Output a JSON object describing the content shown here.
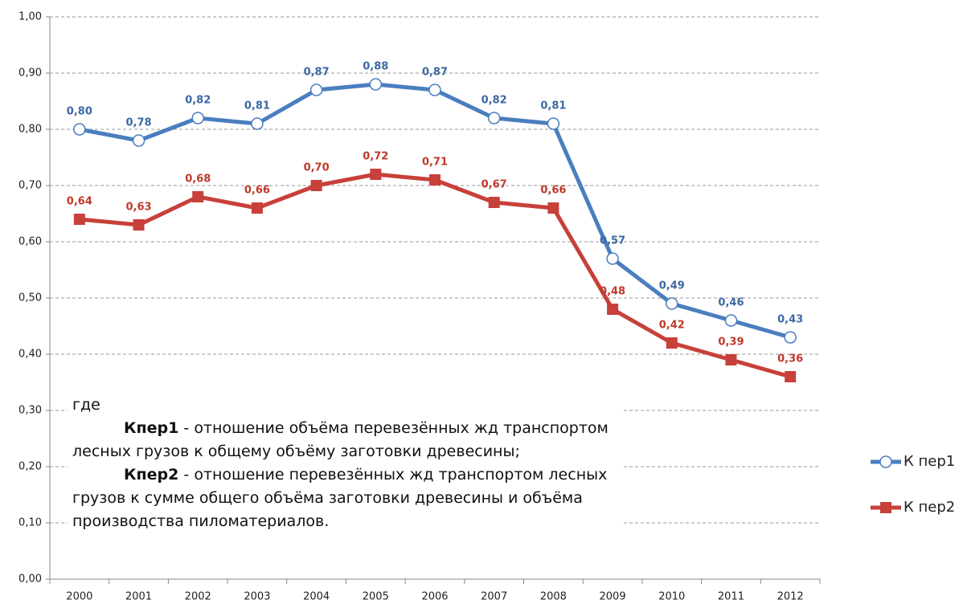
{
  "chart_data": {
    "type": "line",
    "categories": [
      "2000",
      "2001",
      "2002",
      "2003",
      "2004",
      "2005",
      "2006",
      "2007",
      "2008",
      "2009",
      "2010",
      "2011",
      "2012"
    ],
    "series": [
      {
        "name": "К пер1",
        "color": "#4a7ebf",
        "label_color": "#3d68a3",
        "marker": "circle",
        "values": [
          0.8,
          0.78,
          0.82,
          0.81,
          0.87,
          0.88,
          0.87,
          0.82,
          0.81,
          0.57,
          0.49,
          0.46,
          0.43
        ],
        "value_labels": [
          "0,80",
          "0,78",
          "0,82",
          "0,81",
          "0,87",
          "0,88",
          "0,87",
          "0,82",
          "0,81",
          "0,57",
          "0,49",
          "0,46",
          "0,43"
        ]
      },
      {
        "name": "К пер2",
        "color": "#c8403a",
        "label_color": "#c0392b",
        "marker": "square",
        "values": [
          0.64,
          0.63,
          0.68,
          0.66,
          0.7,
          0.72,
          0.71,
          0.67,
          0.66,
          0.48,
          0.42,
          0.39,
          0.36
        ],
        "value_labels": [
          "0,64",
          "0,63",
          "0,68",
          "0,66",
          "0,70",
          "0,72",
          "0,71",
          "0,67",
          "0,66",
          "0,48",
          "0,42",
          "0,39",
          "0,36"
        ]
      }
    ],
    "ylim": [
      0,
      1
    ],
    "yticks": [
      {
        "value": 0,
        "label": "0,00"
      },
      {
        "value": 0.1,
        "label": "0,10"
      },
      {
        "value": 0.2,
        "label": "0,20"
      },
      {
        "value": 0.3,
        "label": "0,30"
      },
      {
        "value": 0.4,
        "label": "0,40"
      },
      {
        "value": 0.5,
        "label": "0,50"
      },
      {
        "value": 0.6,
        "label": "0,60"
      },
      {
        "value": 0.7,
        "label": "0,70"
      },
      {
        "value": 0.8,
        "label": "0,80"
      },
      {
        "value": 0.9,
        "label": "0,90"
      },
      {
        "value": 1,
        "label": "1,00"
      }
    ],
    "grid": true,
    "legend": "right",
    "annotation": {
      "intro": "где",
      "items": [
        {
          "term": "Кпер1",
          "text": "- отношение объёма перевезённых жд транспортом лесных грузов к общему объёму заготовки древесины;"
        },
        {
          "term": "Кпер2",
          "text": "- отношение перевезённых жд транспортом лесных грузов к сумме общего объёма заготовки древесины и объёма производства пиломатериалов."
        }
      ]
    }
  }
}
